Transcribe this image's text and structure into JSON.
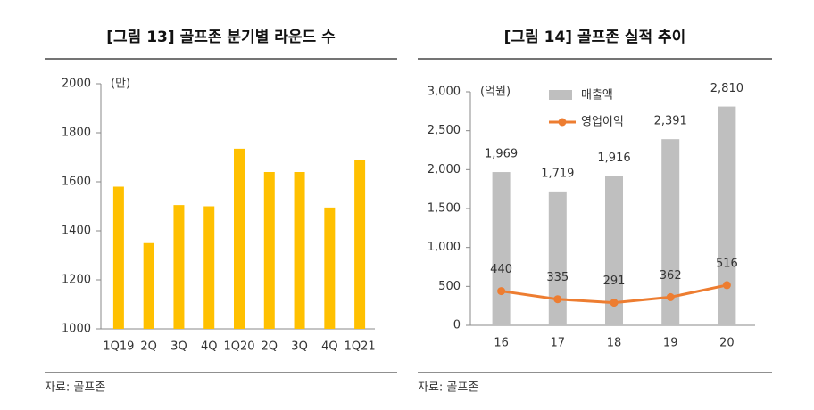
{
  "chart_data": [
    {
      "type": "bar",
      "title": "[그림 13] 골프존 분기별 라운드 수",
      "unit_label": "(만)",
      "source": "자료: 골프존",
      "categories": [
        "1Q19",
        "2Q",
        "3Q",
        "4Q",
        "1Q20",
        "2Q",
        "3Q",
        "4Q",
        "1Q21"
      ],
      "values": [
        1580,
        1350,
        1505,
        1500,
        1735,
        1640,
        1640,
        1495,
        1690
      ],
      "color": "#ffc000",
      "ylim": [
        1000,
        2000
      ],
      "yticks": [
        1000,
        1200,
        1400,
        1600,
        1800,
        2000
      ]
    },
    {
      "type": "combo",
      "title": "[그림 14] 골프존 실적 추이",
      "unit_label": "(억원)",
      "source": "자료: 골프존",
      "categories": [
        "16",
        "17",
        "18",
        "19",
        "20"
      ],
      "series": [
        {
          "name": "매출액",
          "type": "bar",
          "color": "#bfbfbf",
          "values": [
            1969,
            1719,
            1916,
            2391,
            2810
          ],
          "value_labels": [
            "1,969",
            "1,719",
            "1,916",
            "2,391",
            "2,810"
          ]
        },
        {
          "name": "영업이익",
          "type": "line",
          "color": "#ed7d31",
          "values": [
            440,
            335,
            291,
            362,
            516
          ]
        }
      ],
      "ylim": [
        0,
        3000
      ],
      "yticks": [
        0,
        500,
        {
          "value": 1000,
          "label": "1,000"
        },
        {
          "value": 1500,
          "label": "1,500"
        },
        {
          "value": 2000,
          "label": "2,000"
        },
        {
          "value": 2500,
          "label": "2,500"
        },
        {
          "value": 3000,
          "label": "3,000"
        }
      ]
    }
  ]
}
